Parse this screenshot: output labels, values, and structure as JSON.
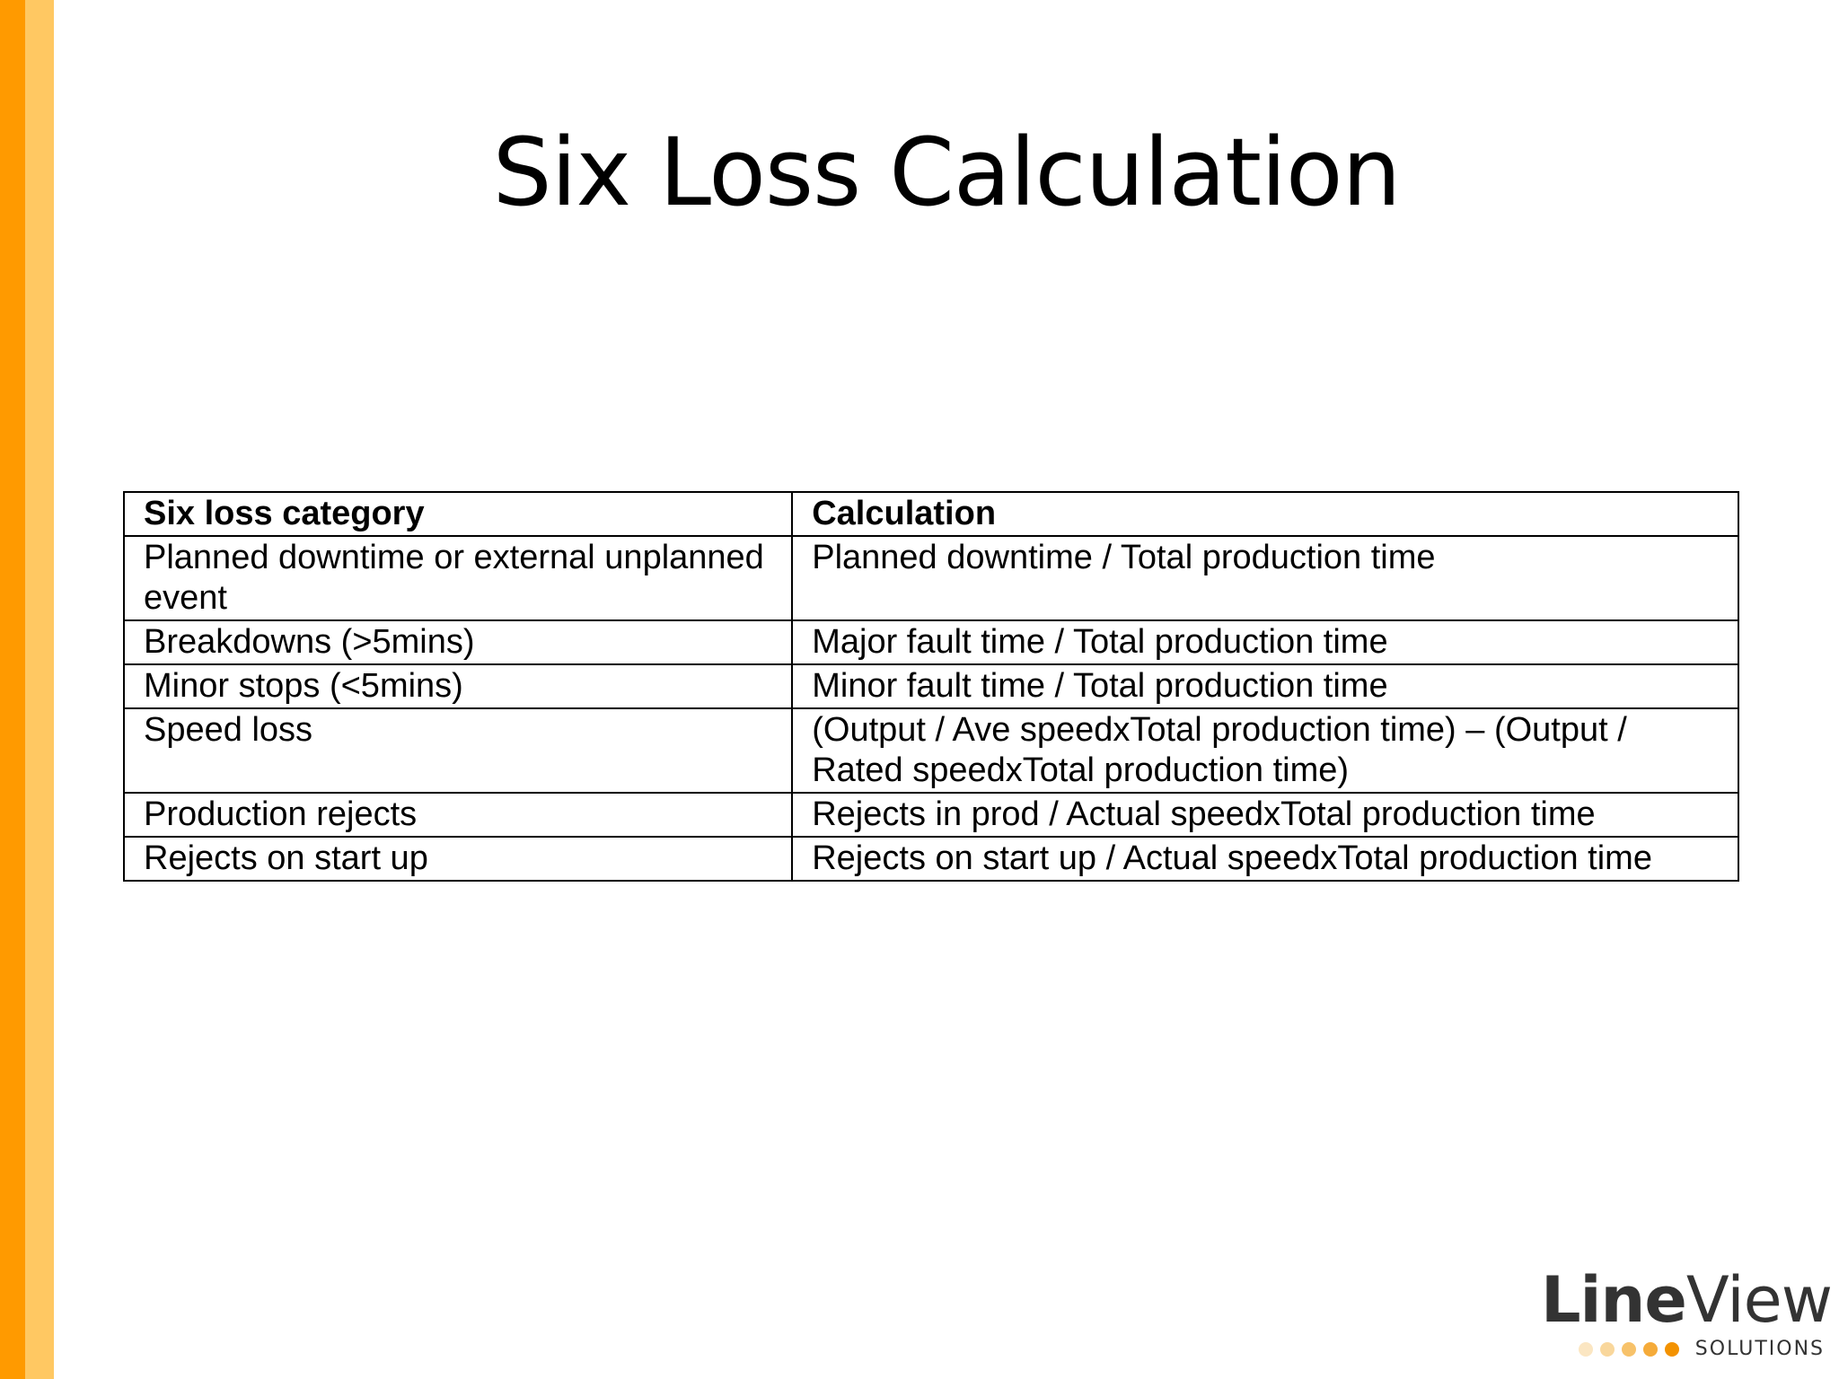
{
  "slide": {
    "title": "Six Loss Calculation",
    "accent_colors": [
      "#ff9a00",
      "#ffc862"
    ]
  },
  "table": {
    "headers": [
      "Six loss category",
      "Calculation"
    ],
    "rows": [
      [
        "Planned downtime or external unplanned event",
        "Planned downtime / Total production time"
      ],
      [
        "Breakdowns (>5mins)",
        "Major fault time / Total production time"
      ],
      [
        "Minor stops (<5mins)",
        "Minor fault time / Total production time"
      ],
      [
        "Speed loss",
        "(Output / Ave speedxTotal production time) – (Output / Rated speedxTotal production time)"
      ],
      [
        "Production rejects",
        "Rejects in prod / Actual speedxTotal production time"
      ],
      [
        "Rejects on start up",
        "Rejects on start up / Actual speedxTotal production time"
      ]
    ]
  },
  "logo": {
    "word_line": "Line",
    "word_view": "View",
    "subtitle": "SOLUTIONS",
    "dot_colors": [
      "#fbe6c2",
      "#f9d79c",
      "#f7c26a",
      "#f5ab3a",
      "#f39200"
    ]
  }
}
